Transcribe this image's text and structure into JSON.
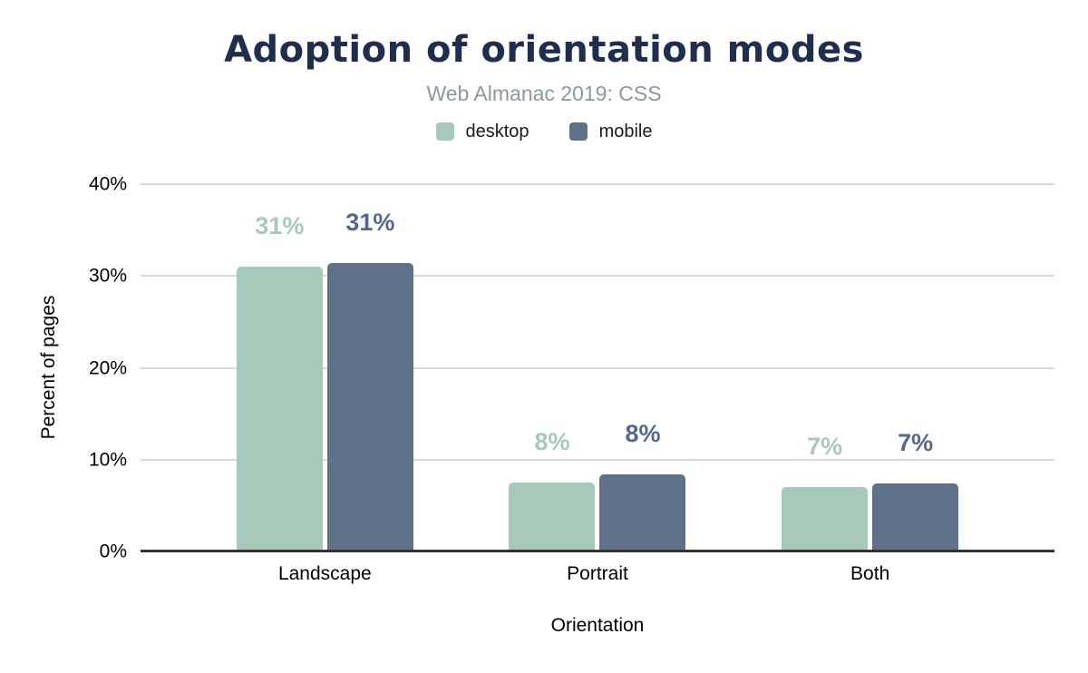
{
  "chart_data": {
    "type": "bar",
    "title": "Adoption of orientation modes",
    "subtitle": "Web Almanac 2019: CSS",
    "xlabel": "Orientation",
    "ylabel": "Percent of pages",
    "categories": [
      "Landscape",
      "Portrait",
      "Both"
    ],
    "series": [
      {
        "name": "desktop",
        "color": "#a7c9b9",
        "label_color": "#a7c9b9",
        "values": [
          31.0,
          7.5,
          7.0
        ],
        "labels": [
          "31%",
          "8%",
          "7%"
        ]
      },
      {
        "name": "mobile",
        "color": "#5e7189",
        "label_color": "#54688e",
        "values": [
          31.4,
          8.4,
          7.4
        ],
        "labels": [
          "31%",
          "8%",
          "7%"
        ]
      }
    ],
    "y_ticks": [
      "0%",
      "10%",
      "20%",
      "30%",
      "40%"
    ],
    "ylim": [
      0,
      40
    ],
    "grid": true,
    "legend_position": "top"
  },
  "colors": {
    "title": "#1f2d4f",
    "subtitle": "#8e969e",
    "gridline": "#d9d9d9",
    "axis_line": "#333333",
    "background": "#ffffff"
  }
}
